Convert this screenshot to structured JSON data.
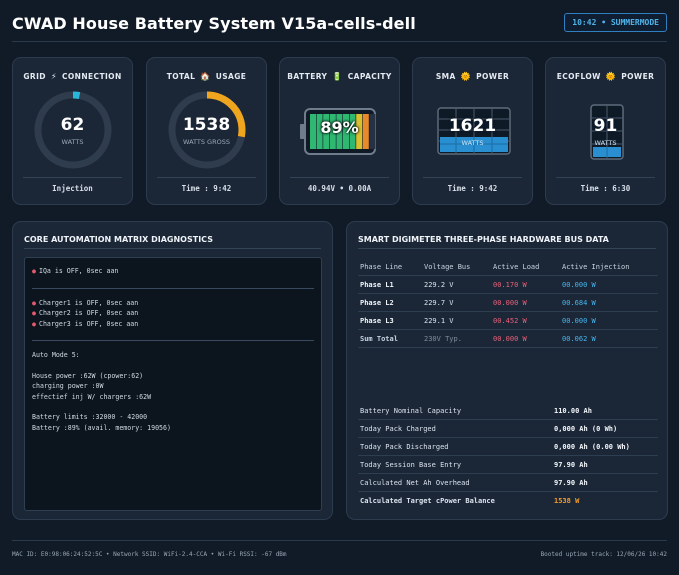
{
  "header": {
    "title": "CWAD House Battery System V15a-cells-dell",
    "badge": "10:42 • SUMMERMODE"
  },
  "cards": {
    "grid": {
      "title_a": "GRID",
      "icon": "⚡",
      "title_b": "CONNECTION",
      "value": "62",
      "unit": "WATTS",
      "footer": "Injection",
      "gauge_fraction": 0.03
    },
    "usage": {
      "title_a": "TOTAL",
      "icon": "🏠",
      "title_b": "USAGE",
      "value": "1538",
      "unit": "WATTS GROSS",
      "footer": "Time : 9:42",
      "gauge_fraction": 0.28
    },
    "battery": {
      "title_a": "BATTERY",
      "icon": "🔋",
      "title_b": "CAPACITY",
      "value": "89%",
      "footer": "40.94V  •  0.00A",
      "fill_percent": 89
    },
    "sma": {
      "title_a": "SMA",
      "icon": "🌞",
      "title_b": "POWER",
      "value": "1621",
      "unit": "WATTS",
      "footer": "Time : 9:42"
    },
    "ecoflow": {
      "title_a": "ECOFLOW",
      "icon": "🌞",
      "title_b": "POWER",
      "value": "91",
      "unit": "WATTS",
      "footer": "Time : 6:30"
    }
  },
  "diagnostics": {
    "title": "CORE AUTOMATION MATRIX DIAGNOSTICS",
    "block1": [
      "IQa is OFF, 0sec aan"
    ],
    "block2": [
      "Charger1 is OFF, 0sec aan",
      "Charger2 is OFF, 0sec aan",
      "Charger3 is OFF, 0sec aan"
    ],
    "mode_title": "Auto Mode 5:",
    "power_lines": [
      "House power :62W (cpower:62)",
      "charging power :0W",
      "effectief inj W/ chargers :62W"
    ],
    "battery_lines": [
      "Battery limits :32000 - 42000",
      "Battery :89% (avail. memory: 19056)"
    ]
  },
  "meter": {
    "title": "SMART DIGIMETER THREE-PHASE HARDWARE BUS DATA",
    "headers": [
      "Phase Line",
      "Voltage Bus",
      "Active Load",
      "Active Injection"
    ],
    "rows": [
      [
        "Phase L1",
        "229.2 V",
        "00.170 W",
        "00.000 W"
      ],
      [
        "Phase L2",
        "229.7 V",
        "00.000 W",
        "00.684 W"
      ],
      [
        "Phase L3",
        "229.1 V",
        "00.452 W",
        "00.000 W"
      ],
      [
        "Sum Total",
        "230V Typ.",
        "00.000 W",
        "00.062 W"
      ]
    ],
    "stats": [
      [
        "Battery Nominal Capacity",
        "110.00 Ah"
      ],
      [
        "Today Pack Charged",
        "0,000 Ah (0 Wh)"
      ],
      [
        "Today Pack Discharged",
        "0,000 Ah (0.00 Wh)"
      ],
      [
        "Today Session Base Entry",
        "97.90 Ah"
      ],
      [
        "Calculated Net Ah Overhead",
        "97.90 Ah"
      ],
      [
        "Calculated Target cPower Balance",
        "1538 W"
      ]
    ]
  },
  "footer": {
    "left": "MAC ID: E0:98:06:24:52:5C • Network SSID: WiFi-2.4-CCA • Wi-Fi RSSI: -67 dBm",
    "right": "Booted uptime track: 12/06/26 10:42"
  },
  "colors": {
    "accent_blue": "#46b6ef",
    "accent_orange": "#f39c2b",
    "alert_red": "#e8607a",
    "background": "#111b27"
  }
}
